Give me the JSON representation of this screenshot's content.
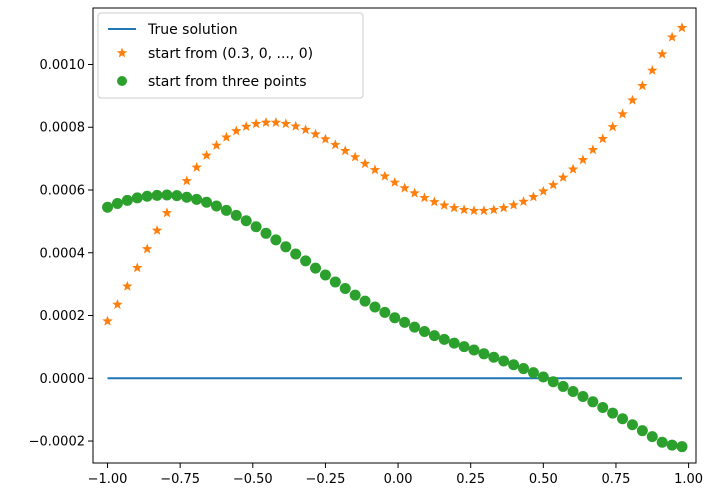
{
  "chart_data": {
    "type": "scatter",
    "xlim": [
      -1.05,
      1.0255
    ],
    "ylim": [
      -0.00027,
      0.00118
    ],
    "x_ticks": [
      -1.0,
      -0.75,
      -0.5,
      -0.25,
      0.0,
      0.25,
      0.5,
      0.75,
      1.0
    ],
    "x_tick_labels": [
      "−1.00",
      "−0.75",
      "−0.50",
      "−0.25",
      "0.00",
      "0.25",
      "0.50",
      "0.75",
      "1.00"
    ],
    "y_ticks": [
      -0.0002,
      0.0,
      0.0002,
      0.0004,
      0.0006,
      0.0008,
      0.001
    ],
    "y_tick_labels": [
      "−0.0002",
      "0.0000",
      "0.0002",
      "0.0004",
      "0.0006",
      "0.0008",
      "0.0010"
    ],
    "grid": false,
    "legend_position": "top-left",
    "x": [
      -1.0,
      -0.9659,
      -0.9318,
      -0.8977,
      -0.8636,
      -0.8295,
      -0.7955,
      -0.7614,
      -0.7273,
      -0.6932,
      -0.6591,
      -0.625,
      -0.5909,
      -0.5568,
      -0.5227,
      -0.4886,
      -0.4545,
      -0.4205,
      -0.3864,
      -0.3523,
      -0.3182,
      -0.2841,
      -0.25,
      -0.2159,
      -0.1818,
      -0.1477,
      -0.1136,
      -0.0795,
      -0.0455,
      -0.0114,
      0.0227,
      0.0568,
      0.0909,
      0.125,
      0.1591,
      0.1932,
      0.2273,
      0.2614,
      0.2955,
      0.3295,
      0.3636,
      0.3977,
      0.4318,
      0.4659,
      0.5,
      0.5341,
      0.5682,
      0.6023,
      0.6364,
      0.6705,
      0.7045,
      0.7386,
      0.7727,
      0.8068,
      0.8409,
      0.875,
      0.9091,
      0.9432,
      0.9773
    ],
    "series": [
      {
        "name": "True solution",
        "style": "line",
        "color": "#1f77b4",
        "y": [
          0,
          0,
          0,
          0,
          0,
          0,
          0,
          0,
          0,
          0,
          0,
          0,
          0,
          0,
          0,
          0,
          0,
          0,
          0,
          0,
          0,
          0,
          0,
          0,
          0,
          0,
          0,
          0,
          0,
          0,
          0,
          0,
          0,
          0,
          0,
          0,
          0,
          0,
          0,
          0,
          0,
          0,
          0,
          0,
          0,
          0,
          0,
          0,
          0,
          0,
          0,
          0,
          0,
          0,
          0,
          0,
          0,
          0,
          0
        ]
      },
      {
        "name": "start from (0.3, 0, ..., 0)",
        "style": "star",
        "color": "#ff7f0e",
        "y": [
          0.000182,
          0.000235,
          0.000293,
          0.000352,
          0.000412,
          0.000471,
          0.000527,
          0.00058,
          0.000629,
          0.000672,
          0.00071,
          0.000742,
          0.000768,
          0.000788,
          0.000802,
          0.000811,
          0.000815,
          0.000815,
          0.000811,
          0.000803,
          0.000792,
          0.000778,
          0.000762,
          0.000744,
          0.000725,
          0.000705,
          0.000684,
          0.000664,
          0.000644,
          0.000624,
          0.000606,
          0.00059,
          0.000575,
          0.000562,
          0.000551,
          0.000543,
          0.000537,
          0.000534,
          0.000534,
          0.000537,
          0.000543,
          0.000552,
          0.000563,
          0.000578,
          0.000596,
          0.000616,
          0.00064,
          0.000666,
          0.000696,
          0.000728,
          0.000763,
          0.000801,
          0.000842,
          0.000886,
          0.000932,
          0.000981,
          0.001033,
          0.001087,
          0.001117
        ]
      },
      {
        "name": "start from three points",
        "style": "circle",
        "color": "#2ca02c",
        "y": [
          0.000545,
          0.000557,
          0.000567,
          0.000575,
          0.00058,
          0.000583,
          0.000584,
          0.000582,
          0.000577,
          0.00057,
          0.000561,
          0.000549,
          0.000535,
          0.000519,
          0.000502,
          0.000483,
          0.000462,
          0.000441,
          0.000419,
          0.000396,
          0.000374,
          0.000351,
          0.000329,
          0.000307,
          0.000286,
          0.000265,
          0.000246,
          0.000227,
          0.00021,
          0.000193,
          0.000178,
          0.000163,
          0.000149,
          0.000136,
          0.000124,
          0.000112,
          0.000101,
          9e-05,
          7.8e-05,
          6.7e-05,
          5.5e-05,
          4.3e-05,
          3.1e-05,
          1.8e-05,
          4e-06,
          -1.1e-05,
          -2.6e-05,
          -4.2e-05,
          -5.8e-05,
          -7.5e-05,
          -9.3e-05,
          -0.000111,
          -0.000129,
          -0.000148,
          -0.000167,
          -0.000186,
          -0.000204,
          -0.000213,
          -0.000218
        ]
      }
    ]
  }
}
